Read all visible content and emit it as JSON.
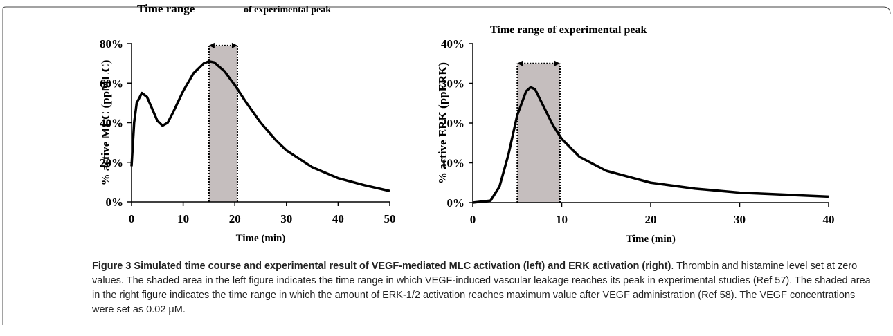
{
  "chart_data": [
    {
      "type": "line",
      "annotation": [
        "Time range",
        "of experimental peak"
      ],
      "x_label": "Time (min)",
      "y_label": "% active MLC (ppMLC)",
      "x": [
        0,
        0.5,
        1,
        2,
        3,
        4,
        5,
        6,
        7,
        8,
        10,
        12,
        14,
        15,
        16,
        18,
        20,
        22,
        25,
        28,
        30,
        35,
        40,
        45,
        50
      ],
      "values": [
        18,
        40,
        50,
        55,
        53,
        47,
        41,
        38.5,
        40,
        45,
        56,
        65,
        70,
        71,
        70.5,
        66,
        59,
        51,
        40,
        31,
        26,
        17.5,
        12,
        8.5,
        5.5
      ],
      "color": "#000000",
      "shaded_x": [
        15,
        20.5
      ],
      "shaded_top": 79,
      "xlim": [
        0,
        50
      ],
      "xticks": [
        0,
        10,
        20,
        30,
        40,
        50
      ],
      "ylim": [
        0,
        80
      ],
      "yticks": [
        {
          "value": 0,
          "label": "0%"
        },
        {
          "value": 20,
          "label": "20%"
        },
        {
          "value": 40,
          "label": "40%"
        },
        {
          "value": 60,
          "label": "60%"
        },
        {
          "value": 80,
          "label": "80%"
        }
      ]
    },
    {
      "type": "line",
      "annotation": [
        "Time range of experimental peak"
      ],
      "x_label": "Time (min)",
      "y_label": "% active ERK (ppERK)",
      "x": [
        0,
        2,
        3,
        4,
        5,
        6,
        6.5,
        7,
        8,
        9,
        10,
        12,
        15,
        20,
        25,
        30,
        35,
        40
      ],
      "values": [
        0,
        0.5,
        4,
        12,
        22,
        28,
        29,
        28.5,
        24,
        19.5,
        16,
        11.5,
        8,
        5,
        3.5,
        2.5,
        2,
        1.5
      ],
      "color": "#000000",
      "shaded_x": [
        5,
        9.8
      ],
      "shaded_top": 35,
      "xlim": [
        0,
        40
      ],
      "xticks": [
        0,
        10,
        20,
        30,
        40
      ],
      "ylim": [
        0,
        40
      ],
      "yticks": [
        {
          "value": 0,
          "label": "0%"
        },
        {
          "value": 10,
          "label": "10%"
        },
        {
          "value": 20,
          "label": "20%"
        },
        {
          "value": 30,
          "label": "30%"
        },
        {
          "value": 40,
          "label": "40%"
        }
      ]
    }
  ],
  "caption": {
    "title": "Figure 3 Simulated time course and experimental result of VEGF-mediated MLC activation (left) and ERK activation (right)",
    "text": ". Thrombin and histamine level set at zero values. The shaded area in the left figure indicates the time range in which VEGF-induced vascular leakage reaches its peak in experimental studies (Ref 57). The shaded area in the right figure indicates the time range in which the amount of ERK-1/2 activation reaches maximum value after VEGF administration (Ref 58). The VEGF concentrations were set as 0.02 μM."
  }
}
